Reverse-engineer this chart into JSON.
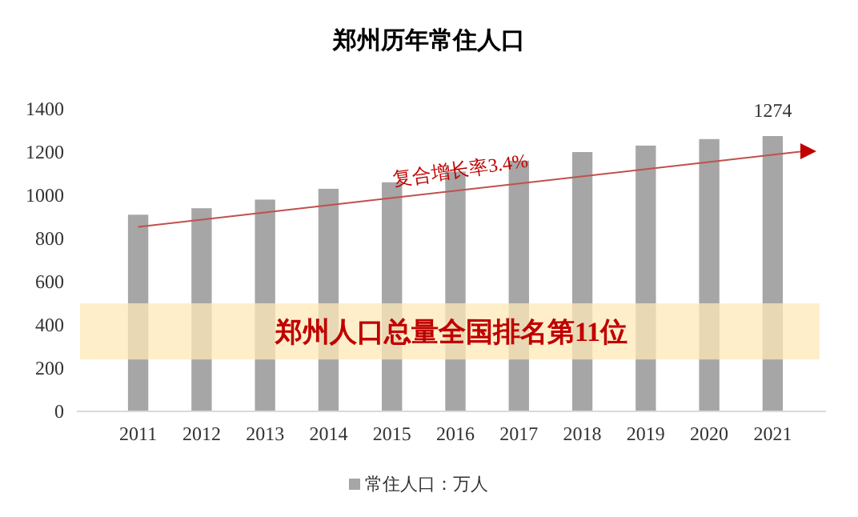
{
  "chart_data": {
    "type": "bar",
    "title": "郑州历年常住人口",
    "categories": [
      "2011",
      "2012",
      "2013",
      "2014",
      "2015",
      "2016",
      "2017",
      "2018",
      "2019",
      "2020",
      "2021"
    ],
    "series": [
      {
        "name": "常住人口：万人",
        "color": "#a6a6a6",
        "values": [
          910,
          940,
          980,
          1030,
          1060,
          1110,
          1160,
          1200,
          1230,
          1260,
          1274
        ],
        "value_labels": [
          null,
          null,
          null,
          null,
          null,
          null,
          null,
          null,
          null,
          null,
          "1274"
        ]
      }
    ],
    "ylim": [
      0,
      1400
    ],
    "yticks": [
      0,
      200,
      400,
      600,
      800,
      1000,
      1200,
      1400
    ],
    "grid": false,
    "legend": "bottom",
    "bands": [
      {
        "axis": "y",
        "from": 240,
        "to": 500,
        "label": "郑州人口总量全国排名第11位",
        "color": "#fde9b8"
      }
    ],
    "annotations": [
      "复合增长率3.4%"
    ]
  }
}
